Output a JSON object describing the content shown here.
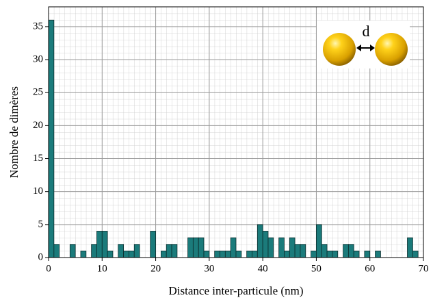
{
  "chart_data": {
    "type": "histogram",
    "xlabel": "Distance inter-particule (nm)",
    "ylabel": "Nombre de dimères",
    "annotation": "d",
    "color": "#1b7b7b",
    "bins": [
      0,
      1,
      2,
      3,
      4,
      5,
      6,
      7,
      8,
      9,
      10,
      11,
      12,
      13,
      14,
      15,
      16,
      17,
      18,
      19,
      20,
      21,
      22,
      23,
      24,
      25,
      26,
      27,
      28,
      29,
      30,
      31,
      32,
      33,
      34,
      35,
      36,
      37,
      38,
      39,
      40,
      41,
      42,
      43,
      44,
      45,
      46,
      47,
      48,
      49,
      50,
      51,
      52,
      53,
      54,
      55,
      56,
      57,
      58,
      59,
      60,
      61,
      62,
      63,
      64,
      65,
      66,
      67,
      68,
      69,
      70
    ],
    "values": [
      36,
      2,
      0,
      0,
      2,
      0,
      1,
      0,
      2,
      4,
      4,
      1,
      0,
      2,
      1,
      1,
      2,
      0,
      0,
      4,
      0,
      1,
      2,
      2,
      0,
      0,
      3,
      3,
      3,
      1,
      0,
      1,
      1,
      1,
      3,
      1,
      0,
      1,
      1,
      5,
      4,
      3,
      0,
      3,
      1,
      3,
      2,
      2,
      0,
      1,
      5,
      2,
      1,
      1,
      0,
      2,
      2,
      1,
      0,
      1,
      0,
      1,
      0,
      0,
      0,
      0,
      0,
      3,
      1,
      0
    ],
    "xlim": [
      0,
      70
    ],
    "ylim": [
      0,
      38
    ],
    "xticks": [
      0,
      10,
      20,
      30,
      40,
      50,
      60,
      70
    ],
    "yticks": [
      0,
      5,
      10,
      15,
      20,
      25,
      30,
      35
    ],
    "grid": true
  }
}
